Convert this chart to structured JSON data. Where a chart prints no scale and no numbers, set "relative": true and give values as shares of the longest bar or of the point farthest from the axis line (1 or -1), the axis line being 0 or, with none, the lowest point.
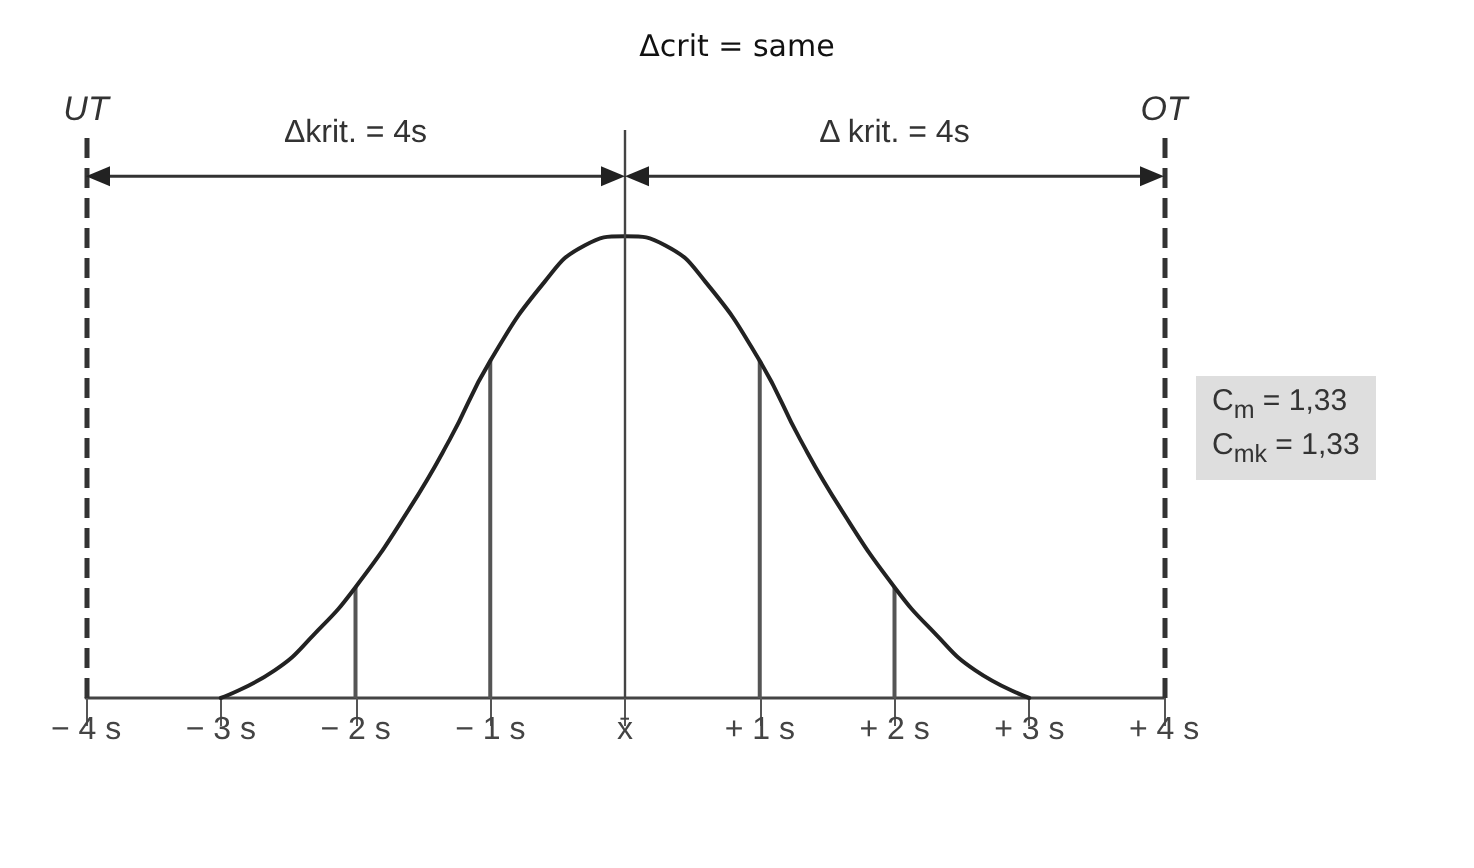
{
  "chart_data": {
    "type": "line",
    "title": "Δcrit = same",
    "relative": true,
    "x": [
      -3,
      -2.6,
      -2.3,
      -2,
      -1.6,
      -1.3,
      -1,
      -0.6,
      -0.3,
      0,
      0.3,
      0.6,
      1,
      1.3,
      1.6,
      2,
      2.3,
      2.6,
      3
    ],
    "series": [
      {
        "color": "#222222",
        "values": [
          0,
          0.06,
          0.14,
          0.24,
          0.41,
          0.56,
          0.73,
          0.9,
          0.98,
          1,
          0.98,
          0.9,
          0.73,
          0.56,
          0.41,
          0.24,
          0.14,
          0.06,
          0
        ]
      },
      {
        "type": "bar",
        "color": "#555555",
        "x": [
          -2,
          -1,
          1,
          2
        ],
        "values": [
          0.24,
          0.73,
          0.73,
          0.24
        ]
      }
    ],
    "xlim": [
      -4,
      4
    ],
    "xticks": [
      {
        "value": -4,
        "label": "− 4 s"
      },
      {
        "value": -3,
        "label": "− 3 s"
      },
      {
        "value": -2,
        "label": "− 2 s"
      },
      {
        "value": -1,
        "label": "− 1 s"
      },
      {
        "value": 0,
        "label": "x̄"
      },
      {
        "value": 1,
        "label": "+ 1 s"
      },
      {
        "value": 2,
        "label": "+ 2 s"
      },
      {
        "value": 3,
        "label": "+ 3 s"
      },
      {
        "value": 4,
        "label": "+ 4 s"
      }
    ],
    "ref_lines": [
      {
        "axis": "x",
        "value": -4,
        "label": "UT",
        "line_style": "dashed",
        "color": "#333333"
      },
      {
        "axis": "x",
        "value": 4,
        "label": "OT",
        "line_style": "dashed",
        "color": "#333333"
      },
      {
        "axis": "x",
        "value": 0,
        "label": null,
        "line_style": "solid",
        "color": "#444444"
      }
    ],
    "annotations": [
      "Δkrit. = 4s",
      "Δ krit. = 4s",
      "C$_{m}$ = 1,33\nC$_{mk}$ = 1,33"
    ],
    "marker": "none",
    "line_style": "solid",
    "grid": false
  }
}
